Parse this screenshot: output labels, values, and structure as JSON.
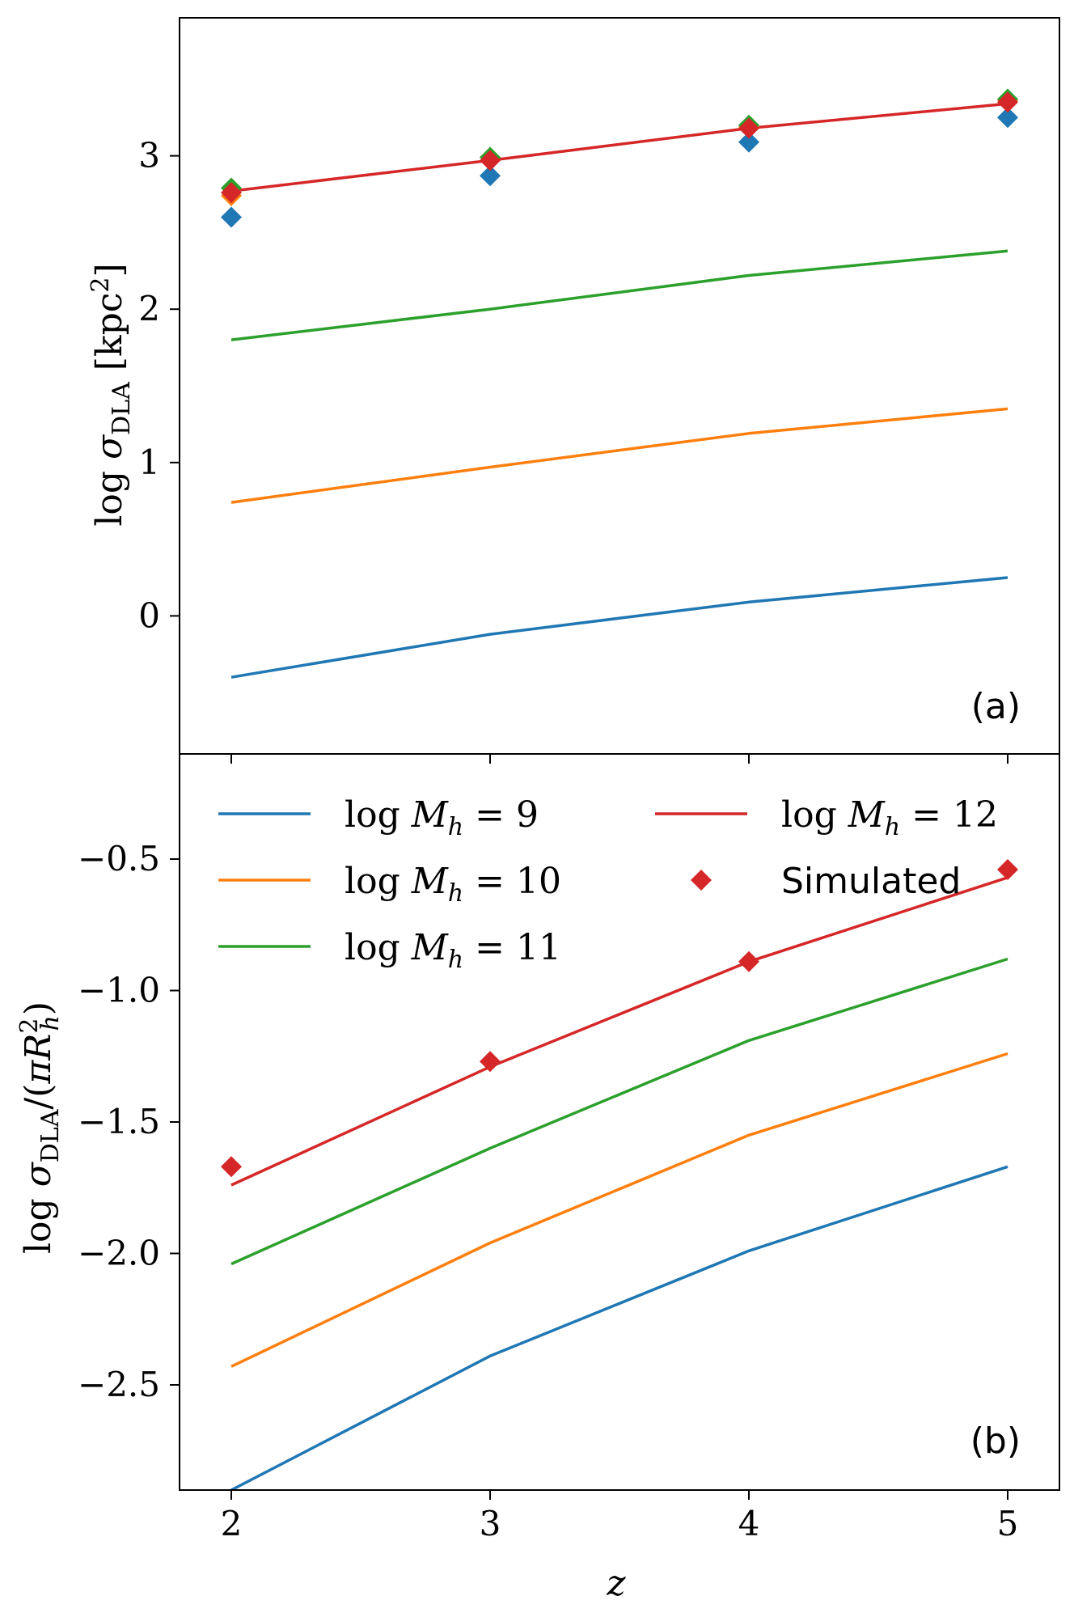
{
  "chart_data": [
    {
      "panel": "(a)",
      "type": "line",
      "ylabel": "log σ_DLA [kpc²]",
      "xlabel": "",
      "x": [
        2,
        3,
        4,
        5
      ],
      "xlim": [
        1.8,
        5.2
      ],
      "ylim": [
        -0.9,
        3.9
      ],
      "yticks": [
        0,
        1,
        2,
        3
      ],
      "ytick_labels": [
        "0",
        "1",
        "2",
        "3"
      ],
      "series": [
        {
          "name": "log M_h = 9",
          "color": "#1f77b4",
          "values": [
            -0.4,
            -0.12,
            0.09,
            0.25
          ]
        },
        {
          "name": "log M_h = 10",
          "color": "#ff7f0e",
          "values": [
            0.74,
            0.97,
            1.19,
            1.35
          ]
        },
        {
          "name": "log M_h = 11",
          "color": "#2ca02c",
          "values": [
            1.8,
            2.0,
            2.22,
            2.38
          ]
        },
        {
          "name": "log M_h = 12",
          "color": "#d62728",
          "values": [
            2.77,
            2.97,
            3.18,
            3.34
          ]
        }
      ],
      "scatter": [
        {
          "color": "#1f77b4",
          "values": [
            2.6,
            2.87,
            3.09,
            3.25
          ]
        },
        {
          "color": "#ff7f0e",
          "values": [
            2.74,
            2.99,
            3.19,
            3.36
          ]
        },
        {
          "color": "#2ca02c",
          "values": [
            2.79,
            2.99,
            3.2,
            3.37
          ]
        },
        {
          "color": "#d62728",
          "values": [
            2.76,
            2.97,
            3.18,
            3.35
          ]
        }
      ]
    },
    {
      "panel": "(b)",
      "type": "line",
      "ylabel": "log σ_DLA/(π R_h²)",
      "xlabel": "z",
      "x": [
        2,
        3,
        4,
        5
      ],
      "xlim": [
        1.8,
        5.2
      ],
      "ylim": [
        -2.9,
        -0.1
      ],
      "xticks": [
        2,
        3,
        4,
        5
      ],
      "xtick_labels": [
        "2",
        "3",
        "4",
        "5"
      ],
      "yticks": [
        -2.5,
        -2.0,
        -1.5,
        -1.0,
        -0.5
      ],
      "ytick_labels": [
        "−2.5",
        "−2.0",
        "−1.5",
        "−1.0",
        "−0.5"
      ],
      "series": [
        {
          "name": "log M_h = 9",
          "color": "#1f77b4",
          "values": [
            -2.9,
            -2.39,
            -1.99,
            -1.67
          ]
        },
        {
          "name": "log M_h = 10",
          "color": "#ff7f0e",
          "values": [
            -2.43,
            -1.96,
            -1.55,
            -1.24
          ]
        },
        {
          "name": "log M_h = 11",
          "color": "#2ca02c",
          "values": [
            -2.04,
            -1.6,
            -1.19,
            -0.88
          ]
        },
        {
          "name": "log M_h = 12",
          "color": "#d62728",
          "values": [
            -1.74,
            -1.29,
            -0.89,
            -0.57
          ]
        }
      ],
      "scatter": [
        {
          "name": "Simulated",
          "color": "#d62728",
          "values": [
            -1.67,
            -1.27,
            -0.89,
            -0.54
          ]
        }
      ],
      "legend": {
        "placement": "top",
        "entries": [
          {
            "text": "log M_h = 9",
            "color": "#1f77b4",
            "marker": "line"
          },
          {
            "text": "log M_h = 10",
            "color": "#ff7f0e",
            "marker": "line"
          },
          {
            "text": "log M_h = 11",
            "color": "#2ca02c",
            "marker": "line"
          },
          {
            "text": "log M_h = 12",
            "color": "#d62728",
            "marker": "line"
          },
          {
            "text": "Simulated",
            "color": "#d62728",
            "marker": "diamond"
          }
        ]
      }
    }
  ]
}
